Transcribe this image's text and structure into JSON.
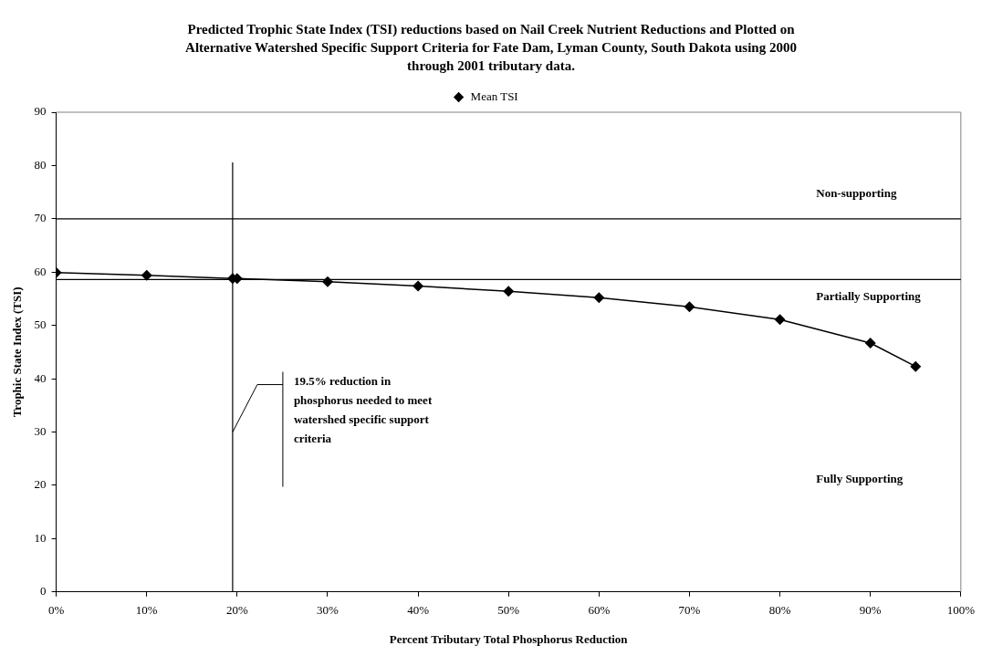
{
  "chart_data": {
    "type": "line",
    "title": "Predicted Trophic State Index (TSI) reductions based on Nail Creek Nutrient Reductions and Plotted on Alternative Watershed Specific Support Criteria for Fate Dam, Lyman County, South Dakota using 2000 through 2001 tributary data.",
    "xlabel": "Percent Tributary Total Phosphorus Reduction",
    "ylabel": "Trophic State Index (TSI)",
    "x": [
      0,
      10,
      19.5,
      20,
      30,
      40,
      50,
      60,
      70,
      80,
      90,
      95
    ],
    "series": [
      {
        "name": "Mean TSI",
        "color": "#000000",
        "values": [
          59.9,
          59.4,
          58.8,
          58.8,
          58.2,
          57.4,
          56.4,
          55.2,
          53.5,
          51.1,
          46.7,
          42.3
        ]
      }
    ],
    "xlim": [
      0,
      100
    ],
    "xticks": [
      {
        "value": 0,
        "label": "0%"
      },
      {
        "value": 10,
        "label": "10%"
      },
      {
        "value": 20,
        "label": "20%"
      },
      {
        "value": 30,
        "label": "30%"
      },
      {
        "value": 40,
        "label": "40%"
      },
      {
        "value": 50,
        "label": "50%"
      },
      {
        "value": 60,
        "label": "60%"
      },
      {
        "value": 70,
        "label": "70%"
      },
      {
        "value": 80,
        "label": "80%"
      },
      {
        "value": 90,
        "label": "90%"
      },
      {
        "value": 100,
        "label": "100%"
      }
    ],
    "ylim": [
      0,
      90
    ],
    "yticks": [
      0,
      10,
      20,
      30,
      40,
      50,
      60,
      70,
      80,
      90
    ],
    "ref_lines": [
      {
        "axis": "y",
        "value": 70,
        "color": "#000000"
      },
      {
        "axis": "y",
        "value": 58.6,
        "color": "#000000"
      },
      {
        "axis": "x",
        "value": 19.5,
        "color": "#000000"
      }
    ],
    "annotations": [
      "Non-supporting",
      "Partially Supporting",
      "Fully Supporting",
      {
        "text": "19.5% reduction in phosphorus needed to meet watershed specific support criteria",
        "x": 19.5,
        "y": 30
      }
    ],
    "legend": "top",
    "marker": "diamond",
    "line_style": "solid",
    "grid": false
  }
}
